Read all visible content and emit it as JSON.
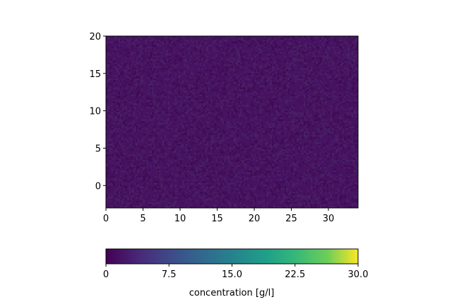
{
  "chart_data": {
    "type": "heatmap",
    "title": "",
    "xlabel": "",
    "ylabel": "",
    "x_range": [
      0,
      34
    ],
    "y_range": [
      -3,
      20
    ],
    "x_ticks": [
      0,
      5,
      10,
      15,
      20,
      25,
      30
    ],
    "y_ticks": [
      0,
      5,
      10,
      15,
      20
    ],
    "x_tick_labels": [
      "0",
      "5",
      "10",
      "15",
      "20",
      "25",
      "30"
    ],
    "y_tick_labels": [
      "0",
      "5",
      "10",
      "15",
      "20"
    ],
    "values_description": "random noise field of low concentration values (≈0–3 g/l)",
    "value_range_in_field": [
      0,
      3
    ],
    "grid": false,
    "colorbar": {
      "label": "concentration [g/l]",
      "colormap": "viridis",
      "range": [
        0,
        30
      ],
      "ticks": [
        0,
        7.5,
        15,
        22.5,
        30
      ],
      "tick_labels": [
        "0",
        "7.5",
        "15.0",
        "22.5",
        "30.0"
      ],
      "orientation": "horizontal",
      "placement": "bottom"
    },
    "colors": {
      "viridis_low": "#440154",
      "viridis_1": "#3b528b",
      "viridis_2": "#21918c",
      "viridis_3": "#5ec962",
      "viridis_high": "#fde725"
    }
  }
}
